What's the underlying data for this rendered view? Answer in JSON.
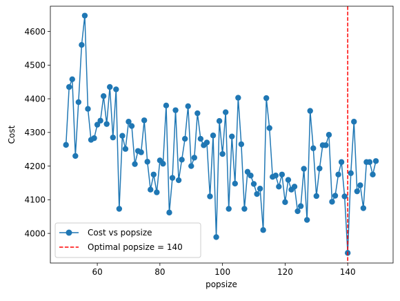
{
  "chart_data": {
    "type": "line",
    "xlabel": "popsize",
    "ylabel": "Cost",
    "xlim": [
      45,
      154.5
    ],
    "ylim": [
      3912,
      4675
    ],
    "grid": false,
    "legend_position": "lower-left",
    "xticks": [
      60,
      80,
      100,
      120,
      140
    ],
    "yticks": [
      4000,
      4100,
      4200,
      4300,
      4400,
      4500,
      4600
    ],
    "series": [
      {
        "name": "Cost vs popsize",
        "color": "#1f77b4",
        "marker": "circle",
        "x": [
          50,
          51,
          52,
          53,
          54,
          55,
          56,
          57,
          58,
          59,
          60,
          61,
          62,
          63,
          64,
          65,
          66,
          67,
          68,
          69,
          70,
          71,
          72,
          73,
          74,
          75,
          76,
          77,
          78,
          79,
          80,
          81,
          82,
          83,
          84,
          85,
          86,
          87,
          88,
          89,
          90,
          91,
          92,
          93,
          94,
          95,
          96,
          97,
          98,
          99,
          100,
          101,
          102,
          103,
          104,
          105,
          106,
          107,
          108,
          109,
          110,
          111,
          112,
          113,
          114,
          115,
          116,
          117,
          118,
          119,
          120,
          121,
          122,
          123,
          124,
          125,
          126,
          127,
          128,
          129,
          130,
          131,
          132,
          133,
          134,
          135,
          136,
          137,
          138,
          139,
          140,
          141,
          142,
          143,
          144,
          145,
          146,
          147,
          148,
          149
        ],
        "values": [
          4263,
          4435,
          4458,
          4230,
          4390,
          4560,
          4647,
          4370,
          4278,
          4283,
          4323,
          4335,
          4408,
          4325,
          4435,
          4285,
          4428,
          4073,
          4290,
          4251,
          4332,
          4319,
          4206,
          4245,
          4241,
          4336,
          4213,
          4130,
          4175,
          4122,
          4217,
          4207,
          4380,
          4062,
          4165,
          4366,
          4158,
          4219,
          4281,
          4378,
          4200,
          4225,
          4357,
          4281,
          4262,
          4270,
          4110,
          4291,
          3989,
          4334,
          4236,
          4360,
          4073,
          4288,
          4148,
          4403,
          4265,
          4073,
          4183,
          4172,
          4147,
          4117,
          4133,
          4010,
          4402,
          4313,
          4168,
          4172,
          4139,
          4175,
          4093,
          4159,
          4130,
          4139,
          4066,
          4081,
          4192,
          4040,
          4364,
          4253,
          4111,
          4193,
          4262,
          4262,
          4293,
          4094,
          4112,
          4175,
          4212,
          4110,
          3942,
          4179,
          4332,
          4125,
          4143,
          4075,
          4212,
          4212,
          4175,
          4215
        ]
      },
      {
        "name": "Optimal popsize = 140",
        "color": "#ff0000",
        "style": "dashed-vertical",
        "x_value": 140
      }
    ]
  }
}
